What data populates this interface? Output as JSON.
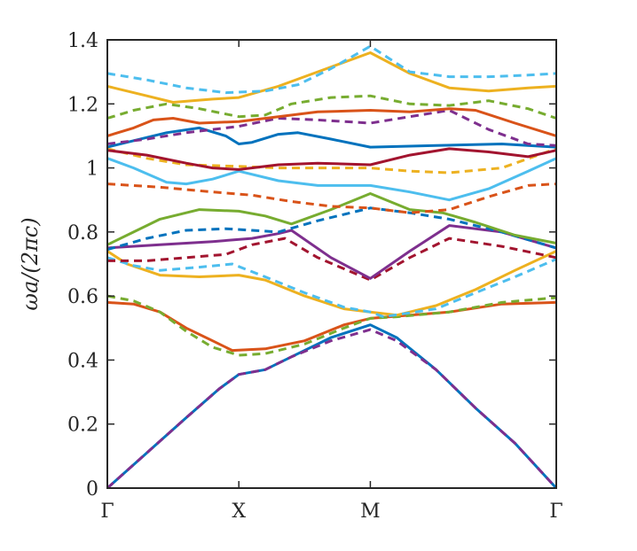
{
  "chart_data": {
    "type": "line",
    "title": "",
    "xlabel": "",
    "ylabel": "ωa/(2πc)",
    "x_ticks": [
      {
        "pos": 0,
        "label": "Γ"
      },
      {
        "pos": 1,
        "label": "X"
      },
      {
        "pos": 2,
        "label": "M"
      },
      {
        "pos": 3.414,
        "label": "Γ"
      }
    ],
    "y_ticks": [
      {
        "value": 0,
        "label": "0"
      },
      {
        "value": 0.2,
        "label": "0.2"
      },
      {
        "value": 0.4,
        "label": "0.4"
      },
      {
        "value": 0.6,
        "label": "0.6"
      },
      {
        "value": 0.8,
        "label": "0.8"
      },
      {
        "value": 1.0,
        "label": "1"
      },
      {
        "value": 1.2,
        "label": "1.2"
      },
      {
        "value": 1.4,
        "label": "1.4"
      }
    ],
    "xlim": [
      0,
      3.414
    ],
    "ylim": [
      0,
      1.4
    ],
    "grid": false,
    "legend": "none",
    "series": [
      {
        "color": "#0072BD",
        "style": "solid",
        "points": [
          [
            0,
            0
          ],
          [
            0.3,
            0.11
          ],
          [
            0.6,
            0.22
          ],
          [
            0.85,
            0.31
          ],
          [
            1,
            0.355
          ],
          [
            1.2,
            0.37
          ],
          [
            1.4,
            0.41
          ],
          [
            1.7,
            0.47
          ],
          [
            2,
            0.51
          ],
          [
            2.2,
            0.47
          ],
          [
            2.5,
            0.37
          ],
          [
            2.8,
            0.25
          ],
          [
            3.1,
            0.14
          ],
          [
            3.414,
            0
          ]
        ]
      },
      {
        "color": "#7E2F8E",
        "style": "dashed",
        "points": [
          [
            0,
            0
          ],
          [
            0.3,
            0.11
          ],
          [
            0.6,
            0.22
          ],
          [
            0.85,
            0.31
          ],
          [
            1,
            0.355
          ],
          [
            1.2,
            0.37
          ],
          [
            1.4,
            0.41
          ],
          [
            1.7,
            0.46
          ],
          [
            2,
            0.495
          ],
          [
            2.2,
            0.46
          ],
          [
            2.5,
            0.37
          ],
          [
            2.8,
            0.25
          ],
          [
            3.1,
            0.14
          ],
          [
            3.414,
            0
          ]
        ]
      },
      {
        "color": "#D95319",
        "style": "solid",
        "points": [
          [
            0,
            0.58
          ],
          [
            0.2,
            0.575
          ],
          [
            0.4,
            0.55
          ],
          [
            0.6,
            0.5
          ],
          [
            0.8,
            0.46
          ],
          [
            0.95,
            0.43
          ],
          [
            1.2,
            0.435
          ],
          [
            1.5,
            0.46
          ],
          [
            1.8,
            0.51
          ],
          [
            2,
            0.53
          ],
          [
            2.3,
            0.54
          ],
          [
            2.6,
            0.55
          ],
          [
            3,
            0.575
          ],
          [
            3.414,
            0.58
          ]
        ]
      },
      {
        "color": "#77AC30",
        "style": "dashed",
        "points": [
          [
            0,
            0.6
          ],
          [
            0.2,
            0.585
          ],
          [
            0.4,
            0.55
          ],
          [
            0.6,
            0.49
          ],
          [
            0.8,
            0.44
          ],
          [
            1,
            0.415
          ],
          [
            1.2,
            0.42
          ],
          [
            1.5,
            0.45
          ],
          [
            1.8,
            0.5
          ],
          [
            2,
            0.53
          ],
          [
            2.2,
            0.535
          ],
          [
            2.6,
            0.55
          ],
          [
            3,
            0.58
          ],
          [
            3.414,
            0.595
          ]
        ]
      },
      {
        "color": "#EDB120",
        "style": "solid",
        "points": [
          [
            0,
            0.74
          ],
          [
            0.15,
            0.7
          ],
          [
            0.4,
            0.665
          ],
          [
            0.7,
            0.66
          ],
          [
            1,
            0.665
          ],
          [
            1.2,
            0.65
          ],
          [
            1.5,
            0.6
          ],
          [
            1.8,
            0.56
          ],
          [
            2,
            0.55
          ],
          [
            2.2,
            0.54
          ],
          [
            2.5,
            0.57
          ],
          [
            2.8,
            0.62
          ],
          [
            3.1,
            0.68
          ],
          [
            3.414,
            0.74
          ]
        ]
      },
      {
        "color": "#4DBEEE",
        "style": "dashed",
        "points": [
          [
            0,
            0.72
          ],
          [
            0.2,
            0.695
          ],
          [
            0.4,
            0.68
          ],
          [
            0.7,
            0.69
          ],
          [
            0.95,
            0.7
          ],
          [
            1.2,
            0.66
          ],
          [
            1.5,
            0.61
          ],
          [
            1.8,
            0.565
          ],
          [
            2,
            0.55
          ],
          [
            2.1,
            0.535
          ],
          [
            2.5,
            0.56
          ],
          [
            2.8,
            0.61
          ],
          [
            3.1,
            0.66
          ],
          [
            3.414,
            0.715
          ]
        ]
      },
      {
        "color": "#A2142F",
        "style": "dashed",
        "points": [
          [
            0,
            0.71
          ],
          [
            0.3,
            0.71
          ],
          [
            0.6,
            0.72
          ],
          [
            0.9,
            0.73
          ],
          [
            1.1,
            0.76
          ],
          [
            1.35,
            0.78
          ],
          [
            1.6,
            0.72
          ],
          [
            2,
            0.65
          ],
          [
            2.3,
            0.72
          ],
          [
            2.6,
            0.78
          ],
          [
            3,
            0.755
          ],
          [
            3.414,
            0.72
          ]
        ]
      },
      {
        "color": "#7E2F8E",
        "style": "solid",
        "points": [
          [
            0,
            0.75
          ],
          [
            0.4,
            0.76
          ],
          [
            0.8,
            0.77
          ],
          [
            1.1,
            0.78
          ],
          [
            1.3,
            0.795
          ],
          [
            1.4,
            0.805
          ],
          [
            1.7,
            0.72
          ],
          [
            2,
            0.655
          ],
          [
            2.3,
            0.74
          ],
          [
            2.6,
            0.82
          ],
          [
            3,
            0.8
          ],
          [
            3.414,
            0.75
          ]
        ]
      },
      {
        "color": "#0072BD",
        "style": "dashed",
        "points": [
          [
            0,
            0.745
          ],
          [
            0.3,
            0.78
          ],
          [
            0.6,
            0.805
          ],
          [
            0.9,
            0.81
          ],
          [
            1.1,
            0.805
          ],
          [
            1.3,
            0.8
          ],
          [
            1.6,
            0.835
          ],
          [
            2,
            0.875
          ],
          [
            2.3,
            0.86
          ],
          [
            2.6,
            0.84
          ],
          [
            3,
            0.8
          ],
          [
            3.414,
            0.75
          ]
        ]
      },
      {
        "color": "#77AC30",
        "style": "solid",
        "points": [
          [
            0,
            0.76
          ],
          [
            0.2,
            0.8
          ],
          [
            0.4,
            0.84
          ],
          [
            0.7,
            0.87
          ],
          [
            1,
            0.865
          ],
          [
            1.2,
            0.85
          ],
          [
            1.4,
            0.825
          ],
          [
            1.7,
            0.87
          ],
          [
            2,
            0.92
          ],
          [
            2.3,
            0.87
          ],
          [
            2.55,
            0.86
          ],
          [
            2.8,
            0.83
          ],
          [
            3.1,
            0.79
          ],
          [
            3.414,
            0.765
          ]
        ]
      },
      {
        "color": "#D95319",
        "style": "dashed",
        "points": [
          [
            0,
            0.95
          ],
          [
            0.4,
            0.94
          ],
          [
            0.8,
            0.925
          ],
          [
            1.1,
            0.915
          ],
          [
            1.4,
            0.895
          ],
          [
            1.7,
            0.88
          ],
          [
            2,
            0.875
          ],
          [
            2.3,
            0.86
          ],
          [
            2.6,
            0.87
          ],
          [
            2.9,
            0.91
          ],
          [
            3.2,
            0.945
          ],
          [
            3.414,
            0.95
          ]
        ]
      },
      {
        "color": "#4DBEEE",
        "style": "solid",
        "points": [
          [
            0,
            1.03
          ],
          [
            0.2,
            1.0
          ],
          [
            0.45,
            0.955
          ],
          [
            0.6,
            0.95
          ],
          [
            0.8,
            0.965
          ],
          [
            1,
            0.99
          ],
          [
            1.3,
            0.96
          ],
          [
            1.6,
            0.945
          ],
          [
            2,
            0.945
          ],
          [
            2.3,
            0.925
          ],
          [
            2.6,
            0.9
          ],
          [
            2.9,
            0.935
          ],
          [
            3.2,
            0.99
          ],
          [
            3.414,
            1.03
          ]
        ]
      },
      {
        "color": "#EDB120",
        "style": "dashed",
        "points": [
          [
            0,
            1.06
          ],
          [
            0.3,
            1.03
          ],
          [
            0.6,
            1.01
          ],
          [
            1,
            1.005
          ],
          [
            1.3,
            1.0
          ],
          [
            1.7,
            1.0
          ],
          [
            2,
            1.0
          ],
          [
            2.3,
            0.99
          ],
          [
            2.6,
            0.985
          ],
          [
            3,
            1.0
          ],
          [
            3.414,
            1.06
          ]
        ]
      },
      {
        "color": "#A2142F",
        "style": "solid",
        "points": [
          [
            0,
            1.055
          ],
          [
            0.3,
            1.04
          ],
          [
            0.6,
            1.015
          ],
          [
            0.8,
            1.0
          ],
          [
            1,
            0.995
          ],
          [
            1.3,
            1.01
          ],
          [
            1.6,
            1.015
          ],
          [
            2,
            1.01
          ],
          [
            2.3,
            1.04
          ],
          [
            2.6,
            1.06
          ],
          [
            2.9,
            1.05
          ],
          [
            3.2,
            1.035
          ],
          [
            3.414,
            1.055
          ]
        ]
      },
      {
        "color": "#0072BD",
        "style": "solid",
        "points": [
          [
            0,
            1.065
          ],
          [
            0.2,
            1.085
          ],
          [
            0.45,
            1.11
          ],
          [
            0.7,
            1.125
          ],
          [
            0.9,
            1.1
          ],
          [
            1,
            1.075
          ],
          [
            1.1,
            1.08
          ],
          [
            1.3,
            1.105
          ],
          [
            1.45,
            1.11
          ],
          [
            1.7,
            1.09
          ],
          [
            2,
            1.065
          ],
          [
            2.5,
            1.07
          ],
          [
            3,
            1.075
          ],
          [
            3.414,
            1.065
          ]
        ]
      },
      {
        "color": "#7E2F8E",
        "style": "dashed",
        "points": [
          [
            0,
            1.075
          ],
          [
            0.3,
            1.09
          ],
          [
            0.6,
            1.11
          ],
          [
            1,
            1.13
          ],
          [
            1.3,
            1.155
          ],
          [
            1.6,
            1.15
          ],
          [
            2,
            1.14
          ],
          [
            2.3,
            1.16
          ],
          [
            2.6,
            1.18
          ],
          [
            2.9,
            1.12
          ],
          [
            3.2,
            1.075
          ],
          [
            3.414,
            1.07
          ]
        ]
      },
      {
        "color": "#D95319",
        "style": "solid",
        "points": [
          [
            0,
            1.1
          ],
          [
            0.2,
            1.125
          ],
          [
            0.35,
            1.15
          ],
          [
            0.5,
            1.155
          ],
          [
            0.7,
            1.14
          ],
          [
            1,
            1.145
          ],
          [
            1.3,
            1.16
          ],
          [
            1.6,
            1.175
          ],
          [
            2,
            1.18
          ],
          [
            2.3,
            1.175
          ],
          [
            2.6,
            1.185
          ],
          [
            2.8,
            1.18
          ],
          [
            3.1,
            1.14
          ],
          [
            3.414,
            1.1
          ]
        ]
      },
      {
        "color": "#77AC30",
        "style": "dashed",
        "points": [
          [
            0,
            1.155
          ],
          [
            0.2,
            1.18
          ],
          [
            0.45,
            1.2
          ],
          [
            0.7,
            1.185
          ],
          [
            1,
            1.16
          ],
          [
            1.2,
            1.165
          ],
          [
            1.4,
            1.2
          ],
          [
            1.7,
            1.22
          ],
          [
            2,
            1.225
          ],
          [
            2.3,
            1.2
          ],
          [
            2.6,
            1.195
          ],
          [
            2.9,
            1.21
          ],
          [
            3.2,
            1.185
          ],
          [
            3.414,
            1.155
          ]
        ]
      },
      {
        "color": "#EDB120",
        "style": "solid",
        "points": [
          [
            0,
            1.255
          ],
          [
            0.3,
            1.225
          ],
          [
            0.5,
            1.205
          ],
          [
            0.8,
            1.215
          ],
          [
            1,
            1.22
          ],
          [
            1.3,
            1.255
          ],
          [
            1.6,
            1.3
          ],
          [
            2,
            1.36
          ],
          [
            2.3,
            1.295
          ],
          [
            2.6,
            1.25
          ],
          [
            2.9,
            1.24
          ],
          [
            3.2,
            1.25
          ],
          [
            3.414,
            1.255
          ]
        ]
      },
      {
        "color": "#4DBEEE",
        "style": "dashed",
        "points": [
          [
            0,
            1.295
          ],
          [
            0.3,
            1.275
          ],
          [
            0.6,
            1.25
          ],
          [
            0.9,
            1.235
          ],
          [
            1.2,
            1.24
          ],
          [
            1.45,
            1.26
          ],
          [
            1.7,
            1.31
          ],
          [
            2,
            1.38
          ],
          [
            2.3,
            1.3
          ],
          [
            2.6,
            1.285
          ],
          [
            2.9,
            1.285
          ],
          [
            3.2,
            1.29
          ],
          [
            3.414,
            1.295
          ]
        ]
      }
    ]
  }
}
